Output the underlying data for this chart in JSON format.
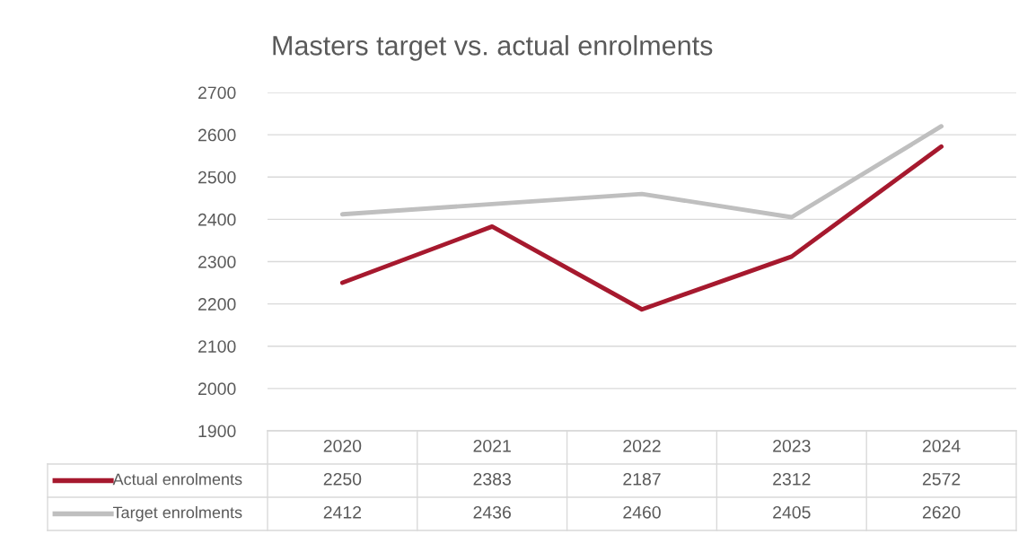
{
  "chart_data": {
    "type": "line",
    "title": "Masters target vs. actual enrolments",
    "categories": [
      "2020",
      "2021",
      "2022",
      "2023",
      "2024"
    ],
    "series": [
      {
        "name": "Actual enrolments",
        "color": "#a6192e",
        "values": [
          2250,
          2383,
          2187,
          2312,
          2572
        ]
      },
      {
        "name": "Target enrolments",
        "color": "#bfbfbf",
        "values": [
          2412,
          2436,
          2460,
          2405,
          2620
        ]
      }
    ],
    "ylim": [
      1900,
      2700
    ],
    "yticks": [
      1900,
      2000,
      2100,
      2200,
      2300,
      2400,
      2500,
      2600,
      2700
    ],
    "grid": "y",
    "legend": "bottom",
    "data_labels": true,
    "marker": "none",
    "line_style": "solid"
  }
}
